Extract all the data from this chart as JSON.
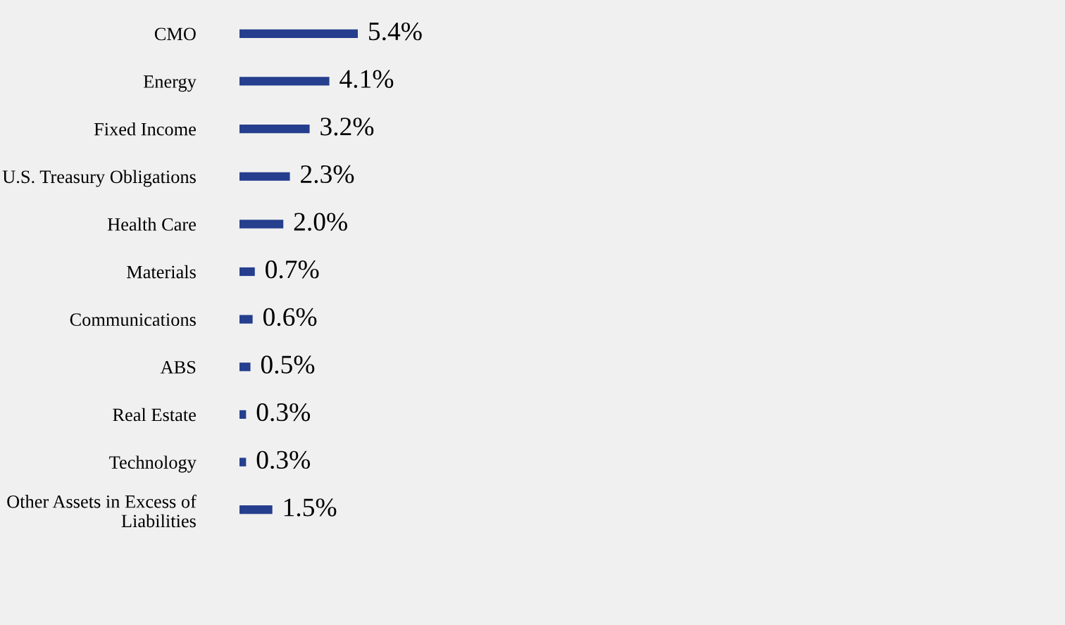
{
  "chart_data": {
    "type": "bar",
    "orientation": "horizontal",
    "categories": [
      "CMO",
      "Energy",
      "Fixed Income",
      "U.S. Treasury Obligations",
      "Health Care",
      "Materials",
      "Communications",
      "ABS",
      "Real Estate",
      "Technology",
      "Other Assets in Excess of\nLiabilities"
    ],
    "values": [
      5.4,
      4.1,
      3.2,
      2.3,
      2.0,
      0.7,
      0.6,
      0.5,
      0.3,
      0.3,
      1.5
    ],
    "value_labels": [
      "5.4%",
      "4.1%",
      "3.2%",
      "2.3%",
      "2.0%",
      "0.7%",
      "0.6%",
      "0.5%",
      "0.3%",
      "0.3%",
      "1.5%"
    ],
    "color": "#253f8e",
    "grid": false,
    "legend": false,
    "tick_labels": "y"
  }
}
